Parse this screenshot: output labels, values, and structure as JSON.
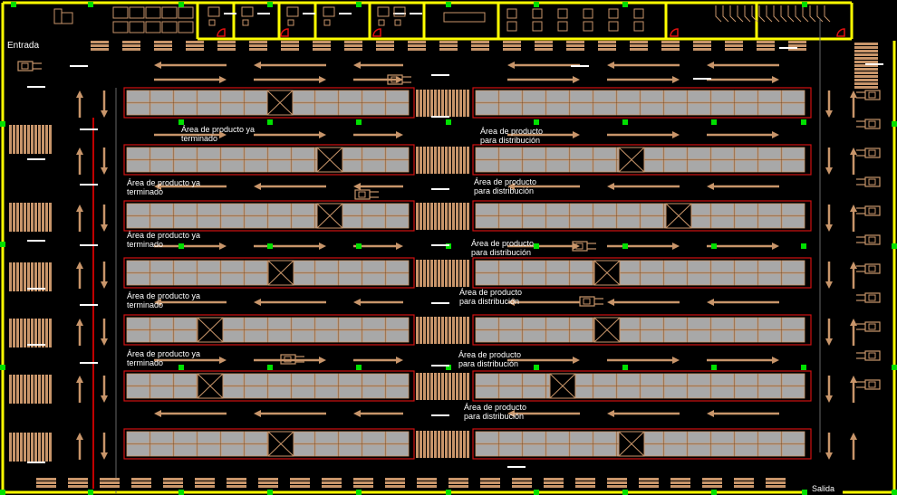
{
  "title": "",
  "labels": {
    "entrance": "Entrada",
    "exit": "Salida",
    "finished_line1": "Área de producto ya",
    "finished_line2": "terminado",
    "distribution_line1": "Área de producto",
    "distribution_line2": "para distribución"
  },
  "colors": {
    "wall": "#ffff00",
    "rack_outline": "#d01010",
    "rack_fill": "#a8a8a8",
    "wood": "#c8956a",
    "marker": "#00e000",
    "background": "#000000"
  },
  "zones": {
    "finished_labels": [
      {
        "l1": "Área de producto ya",
        "l2": "terminado"
      },
      {
        "l1": "Área de producto ya",
        "l2": "terminado"
      },
      {
        "l1": "Área de producto ya",
        "l2": "terminado"
      },
      {
        "l1": "Área de producto ya",
        "l2": "terminado"
      },
      {
        "l1": "Área de producto ya",
        "l2": "terminado"
      }
    ],
    "distribution_labels": [
      {
        "l1": "Área de producto",
        "l2": "para distribución"
      },
      {
        "l1": "Área de producto",
        "l2": "para distribución"
      },
      {
        "l1": "Área de producto",
        "l2": "para distribución"
      },
      {
        "l1": "Área de producto",
        "l2": "para distribución"
      },
      {
        "l1": "Área de producto",
        "l2": "para distribución"
      },
      {
        "l1": "Área de producto",
        "l2": "para distribución"
      }
    ]
  }
}
